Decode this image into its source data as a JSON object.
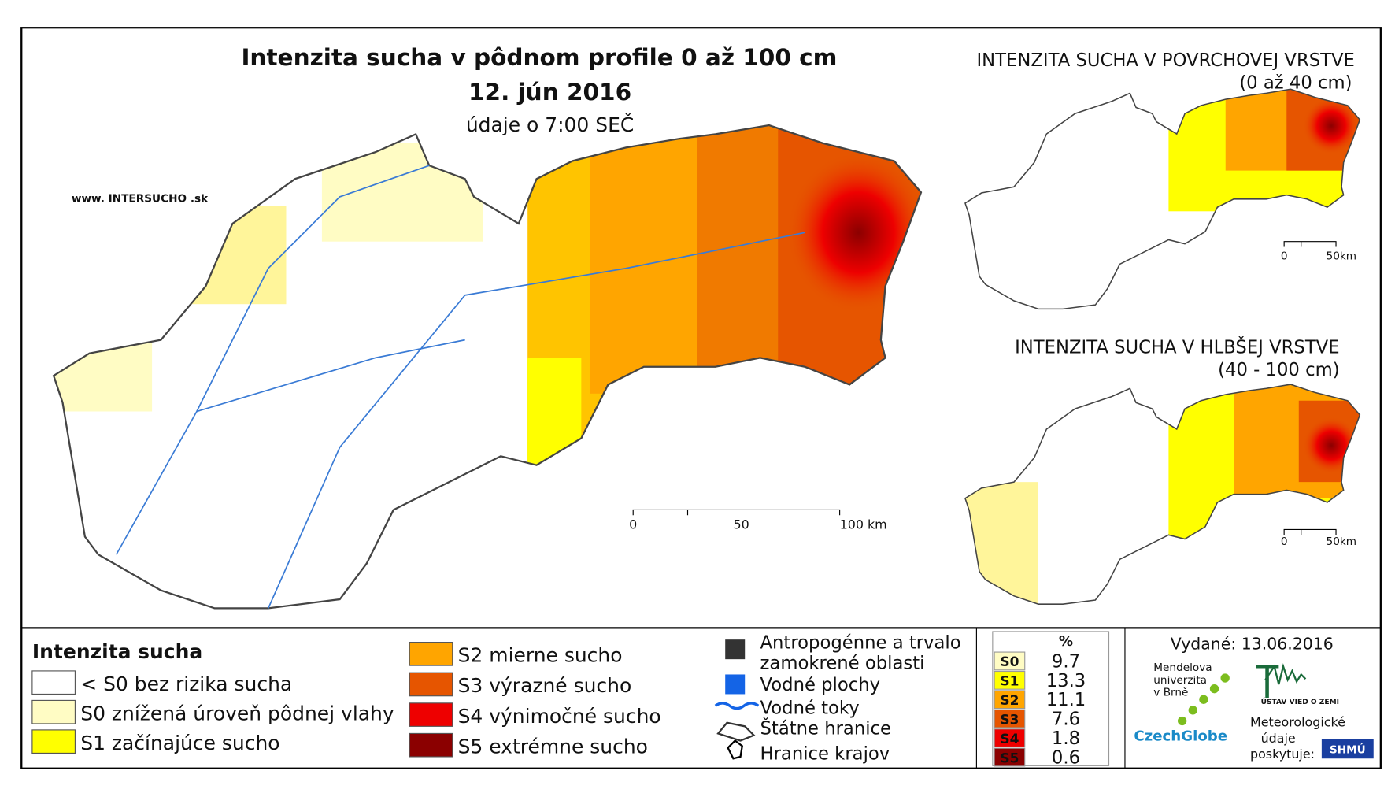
{
  "header": {
    "title": "Intenzita sucha v pôdnom profile 0 až 100 cm",
    "date": "12. jún 2016",
    "note": "údaje o 7:00 SEČ",
    "website": "www. INTERSUCHO .sk"
  },
  "main_map": {
    "scale_bar": [
      "0",
      "50",
      "100 km"
    ]
  },
  "insets": [
    {
      "title": "INTENZITA SUCHA V POVRCHOVEJ VRSTVE",
      "subtitle": "(0 až 40 cm)",
      "scale_bar": [
        "0",
        "50km"
      ]
    },
    {
      "title": "INTENZITA SUCHA V HLBŠEJ VRSTVE",
      "subtitle": "(40 - 100 cm)",
      "scale_bar": [
        "0",
        "50km"
      ]
    }
  ],
  "legend": {
    "title": "Intenzita sucha",
    "classes": [
      {
        "label": "< S0 bez rizika sucha",
        "color": "#ffffff"
      },
      {
        "label": "S0 znížená úroveň pôdnej vlahy",
        "color": "#fffcc4"
      },
      {
        "label": "S1 začínajúce sucho",
        "color": "#ffff00"
      },
      {
        "label": "S2 mierne sucho",
        "color": "#ffa500"
      },
      {
        "label": "S3 výrazné sucho",
        "color": "#e65500"
      },
      {
        "label": "S4 výnimočné sucho",
        "color": "#ee0000"
      },
      {
        "label": "S5 extrémne sucho",
        "color": "#8b0000"
      }
    ],
    "features": [
      "Antropogénne a trvalo",
      "zamokrené oblasti",
      "Vodné plochy",
      "Vodné toky",
      "Štátne hranice",
      "Hranice krajov"
    ]
  },
  "table": {
    "header": "%",
    "rows": [
      [
        "S0",
        "9.7"
      ],
      [
        "S1",
        "13.3"
      ],
      [
        "S2",
        "11.1"
      ],
      [
        "S3",
        "7.6"
      ],
      [
        "S4",
        "1.8"
      ],
      [
        "S5",
        "0.6"
      ]
    ]
  },
  "footer": {
    "issued": "Vydané: 13.06.2016",
    "mendel": [
      "Mendelova",
      "univerzita",
      "v Brně"
    ],
    "czechglobe": "CzechGlobe",
    "ustav": "ÚSTAV VIED O ZEMI",
    "meteo": [
      "Meteorologické",
      "údaje",
      "poskytuje:"
    ],
    "shmu": "SHMÚ"
  }
}
